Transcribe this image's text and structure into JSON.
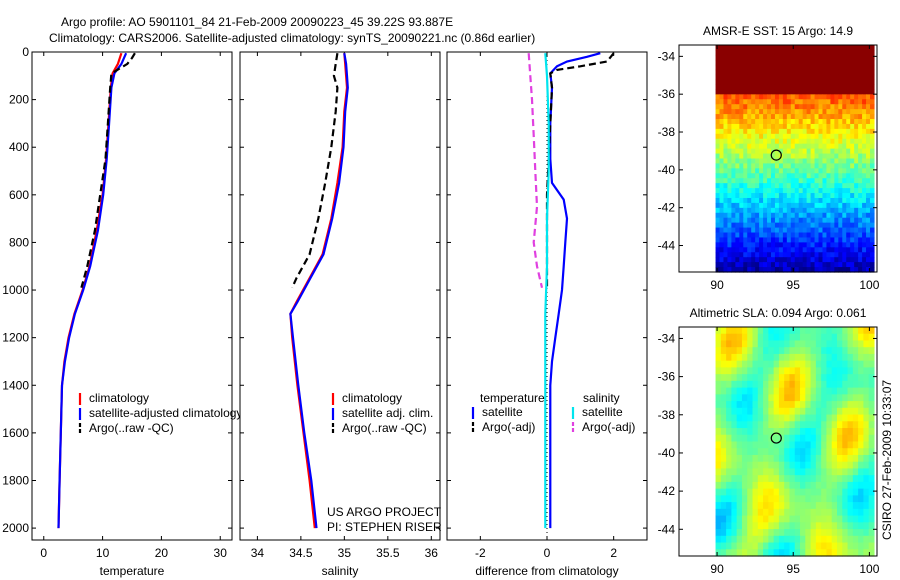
{
  "figure": {
    "title_line1": "Argo profile: AO 5901101_84 21-Feb-2009 20090223_45 39.22S 93.887E",
    "title_line2": "Climatology: CARS2006. Satellite-adjusted climatology: synTS_20090221.nc (0.86d earlier)",
    "side_note": "CSIRO 27-Feb-2009 10:33:07",
    "project_line1": "US ARGO PROJECT",
    "project_line2": "PI: STEPHEN RISER"
  },
  "colors": {
    "climatology": "#ff0000",
    "satellite": "#0000ff",
    "argo": "#000000",
    "salinity_satellite": "#00e5ee",
    "salinity_argo": "#e040e0"
  },
  "chart_data": [
    {
      "type": "line",
      "name": "temperature",
      "xlabel": "temperature",
      "ylabel": "",
      "xlim": [
        -2,
        32
      ],
      "ylim": [
        2050,
        0
      ],
      "x_ticks": [
        0,
        10,
        20,
        30
      ],
      "y_ticks": [
        0,
        200,
        400,
        600,
        800,
        1000,
        1200,
        1400,
        1600,
        1800,
        2000
      ],
      "legend": {
        "placement": "bottom-right",
        "entries": [
          "climatology",
          "satellite-adjusted climatology",
          "Argo(..raw -QC)"
        ]
      },
      "series": [
        {
          "name": "climatology",
          "style": "solid",
          "color_key": "climatology",
          "points": [
            [
              13.2,
              5
            ],
            [
              12.6,
              50
            ],
            [
              11.7,
              90
            ],
            [
              11.4,
              150
            ],
            [
              11.0,
              300
            ],
            [
              10.6,
              450
            ],
            [
              10.0,
              600
            ],
            [
              9.0,
              750
            ],
            [
              7.8,
              900
            ],
            [
              6.6,
              1000
            ],
            [
              5.2,
              1100
            ],
            [
              4.2,
              1200
            ],
            [
              3.5,
              1300
            ],
            [
              3.1,
              1400
            ],
            [
              2.9,
              1600
            ],
            [
              2.7,
              1800
            ],
            [
              2.5,
              2000
            ]
          ]
        },
        {
          "name": "satellite-adjusted climatology",
          "style": "solid",
          "color_key": "satellite",
          "points": [
            [
              14.0,
              5
            ],
            [
              13.2,
              50
            ],
            [
              12.0,
              90
            ],
            [
              11.5,
              150
            ],
            [
              11.1,
              300
            ],
            [
              10.7,
              450
            ],
            [
              10.1,
              600
            ],
            [
              9.2,
              750
            ],
            [
              7.9,
              900
            ],
            [
              6.7,
              1000
            ],
            [
              5.3,
              1100
            ],
            [
              4.3,
              1200
            ],
            [
              3.6,
              1300
            ],
            [
              3.1,
              1400
            ],
            [
              2.9,
              1600
            ],
            [
              2.7,
              1800
            ],
            [
              2.5,
              2000
            ]
          ]
        },
        {
          "name": "Argo(..raw -QC)",
          "style": "dashed",
          "color_key": "argo",
          "points": [
            [
              15.5,
              5
            ],
            [
              15.0,
              25
            ],
            [
              14.2,
              50
            ],
            [
              12.5,
              75
            ],
            [
              11.5,
              90
            ],
            [
              11.3,
              150
            ],
            [
              10.9,
              300
            ],
            [
              10.5,
              450
            ],
            [
              9.6,
              600
            ],
            [
              8.7,
              750
            ],
            [
              7.4,
              900
            ],
            [
              6.4,
              990
            ]
          ]
        }
      ]
    },
    {
      "type": "line",
      "name": "salinity",
      "xlabel": "salinity",
      "ylabel": "",
      "xlim": [
        33.8,
        36.1
      ],
      "ylim": [
        2050,
        0
      ],
      "x_ticks": [
        34,
        34.5,
        35,
        35.5,
        36
      ],
      "legend": {
        "placement": "bottom-right",
        "entries": [
          "climatology",
          "satellite adj. clim.",
          "Argo(..raw -QC)"
        ]
      },
      "series": [
        {
          "name": "climatology",
          "style": "solid",
          "color_key": "climatology",
          "points": [
            [
              35.0,
              5
            ],
            [
              35.01,
              50
            ],
            [
              35.02,
              100
            ],
            [
              35.03,
              150
            ],
            [
              35.0,
              250
            ],
            [
              34.98,
              400
            ],
            [
              34.92,
              550
            ],
            [
              34.85,
              700
            ],
            [
              34.75,
              850
            ],
            [
              34.6,
              950
            ],
            [
              34.45,
              1050
            ],
            [
              34.38,
              1100
            ],
            [
              34.4,
              1200
            ],
            [
              34.46,
              1400
            ],
            [
              34.53,
              1600
            ],
            [
              34.6,
              1800
            ],
            [
              34.66,
              2000
            ]
          ]
        },
        {
          "name": "satellite adj. clim.",
          "style": "solid",
          "color_key": "satellite",
          "points": [
            [
              35.0,
              5
            ],
            [
              35.02,
              50
            ],
            [
              35.03,
              100
            ],
            [
              35.04,
              150
            ],
            [
              35.01,
              250
            ],
            [
              34.99,
              400
            ],
            [
              34.94,
              550
            ],
            [
              34.86,
              700
            ],
            [
              34.76,
              850
            ],
            [
              34.61,
              950
            ],
            [
              34.46,
              1050
            ],
            [
              34.38,
              1100
            ],
            [
              34.41,
              1200
            ],
            [
              34.47,
              1400
            ],
            [
              34.54,
              1600
            ],
            [
              34.62,
              1800
            ],
            [
              34.68,
              2000
            ]
          ]
        },
        {
          "name": "Argo(..raw -QC)",
          "style": "dashed",
          "color_key": "argo",
          "points": [
            [
              34.92,
              5
            ],
            [
              34.9,
              50
            ],
            [
              34.88,
              100
            ],
            [
              34.92,
              150
            ],
            [
              34.9,
              250
            ],
            [
              34.85,
              400
            ],
            [
              34.78,
              550
            ],
            [
              34.7,
              700
            ],
            [
              34.6,
              850
            ],
            [
              34.45,
              950
            ],
            [
              34.4,
              990
            ]
          ]
        }
      ]
    },
    {
      "type": "line",
      "name": "difference",
      "xlabel": "difference from climatology",
      "ylabel": "",
      "xlim": [
        -3,
        3
      ],
      "ylim": [
        2050,
        0
      ],
      "x_ticks": [
        -2,
        0,
        2
      ],
      "legend": {
        "placement": "bottom",
        "group_titles": [
          "temperature",
          "salinity"
        ],
        "entries": [
          "satellite",
          "Argo(-adj)",
          "satellite",
          "Argo(-adj)"
        ]
      },
      "series": [
        {
          "name": "temperature satellite",
          "style": "solid",
          "color_key": "satellite",
          "points": [
            [
              1.6,
              5
            ],
            [
              1.2,
              20
            ],
            [
              0.6,
              40
            ],
            [
              0.3,
              60
            ],
            [
              0.1,
              90
            ],
            [
              0.15,
              150
            ],
            [
              0.1,
              300
            ],
            [
              0.1,
              450
            ],
            [
              0.15,
              550
            ],
            [
              0.5,
              620
            ],
            [
              0.6,
              700
            ],
            [
              0.55,
              800
            ],
            [
              0.5,
              900
            ],
            [
              0.45,
              1000
            ],
            [
              0.35,
              1100
            ],
            [
              0.25,
              1200
            ],
            [
              0.15,
              1300
            ],
            [
              0.1,
              1400
            ],
            [
              0.1,
              1600
            ],
            [
              0.1,
              1800
            ],
            [
              0.1,
              2000
            ]
          ]
        },
        {
          "name": "temperature Argo(-adj)",
          "style": "dashed",
          "color_key": "argo",
          "points": [
            [
              2.0,
              5
            ],
            [
              1.8,
              40
            ],
            [
              1.0,
              60
            ],
            [
              0.3,
              75
            ],
            [
              0.1,
              90
            ],
            [
              0.15,
              150
            ],
            [
              0.1,
              300
            ],
            [
              0.05,
              450
            ],
            [
              0.0,
              600
            ],
            [
              0.0,
              800
            ],
            [
              0.0,
              1000
            ]
          ]
        },
        {
          "name": "salinity satellite",
          "style": "solid",
          "color_key": "salinity_satellite",
          "points": [
            [
              -0.05,
              5
            ],
            [
              0.0,
              100
            ],
            [
              0.05,
              300
            ],
            [
              0.05,
              500
            ],
            [
              0.0,
              700
            ],
            [
              0.0,
              900
            ],
            [
              -0.05,
              1100
            ],
            [
              -0.05,
              1400
            ],
            [
              -0.05,
              1700
            ],
            [
              -0.05,
              2000
            ]
          ]
        },
        {
          "name": "salinity Argo(-adj)",
          "style": "dashed",
          "color_key": "salinity_argo",
          "points": [
            [
              -0.55,
              5
            ],
            [
              -0.5,
              100
            ],
            [
              -0.45,
              200
            ],
            [
              -0.4,
              350
            ],
            [
              -0.35,
              500
            ],
            [
              -0.3,
              650
            ],
            [
              -0.4,
              800
            ],
            [
              -0.3,
              900
            ],
            [
              -0.15,
              990
            ]
          ]
        }
      ]
    },
    {
      "type": "heatmap",
      "name": "AMSR-E SST",
      "title": "AMSR-E SST: 15 Argo: 14.9",
      "xlim": [
        87.5,
        100.5
      ],
      "ylim": [
        -45.4,
        -33.4
      ],
      "x_ticks": [
        90,
        95,
        100
      ],
      "y_ticks": [
        -34,
        -36,
        -38,
        -40,
        -42,
        -44
      ],
      "argo_position": {
        "lon": 93.887,
        "lat": -39.22
      },
      "field": {
        "lon_range": [
          89.9,
          100.3
        ],
        "lat_range": [
          -45.4,
          -33.4
        ],
        "description": "warm north to cool south"
      }
    },
    {
      "type": "heatmap",
      "name": "Altimetric SLA",
      "title": "Altimetric SLA: 0.094  Argo: 0.061",
      "xlim": [
        87.5,
        100.5
      ],
      "ylim": [
        -45.4,
        -33.4
      ],
      "x_ticks": [
        90,
        95,
        100
      ],
      "y_ticks": [
        -34,
        -36,
        -38,
        -40,
        -42,
        -44
      ],
      "argo_position": {
        "lon": 93.887,
        "lat": -39.22
      },
      "field": {
        "lon_range": [
          89.9,
          100.3
        ],
        "lat_range": [
          -45.4,
          -33.4
        ],
        "description": "mostly yellow-green with cyan and orange patches"
      }
    }
  ]
}
